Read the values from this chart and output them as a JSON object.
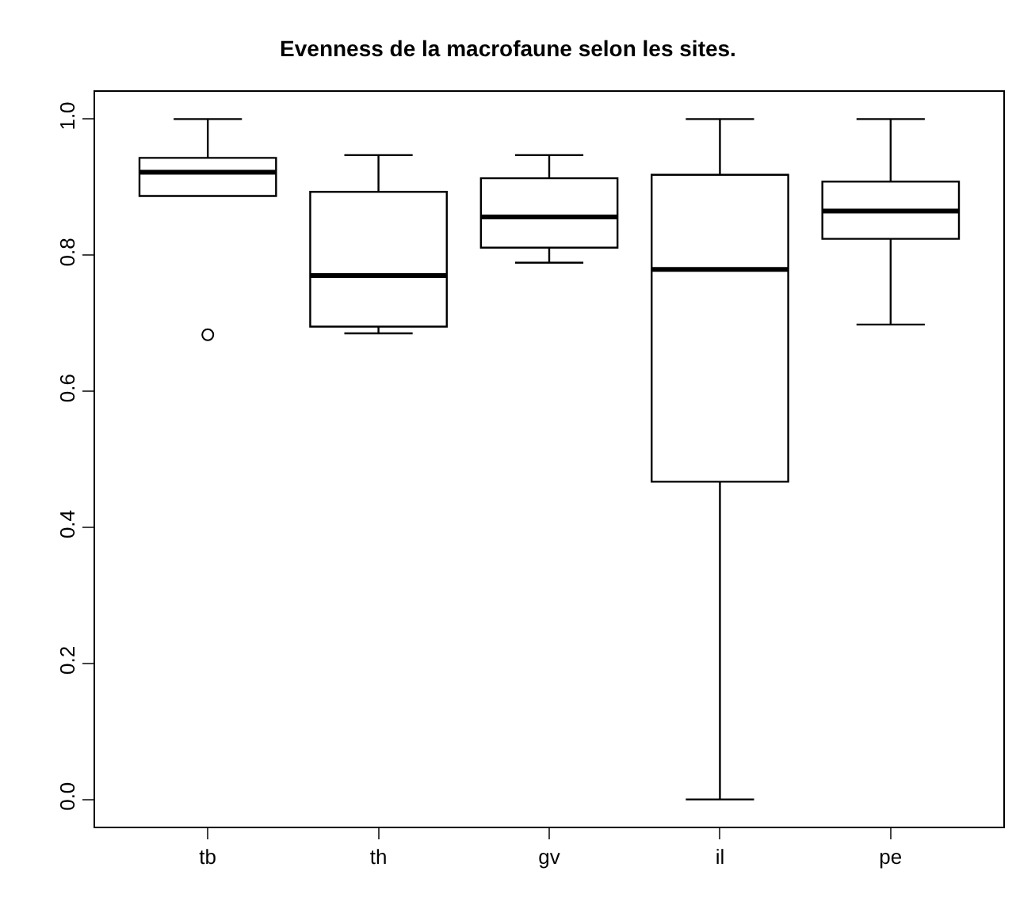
{
  "chart_data": {
    "type": "box",
    "title": "Evenness de la macrofaune selon les sites.",
    "categories": [
      "tb",
      "th",
      "gv",
      "il",
      "pe"
    ],
    "boxes": [
      {
        "low": 0.887,
        "q1": 0.887,
        "median": 0.922,
        "q3": 0.943,
        "high": 1.0,
        "outliers": [
          0.683
        ]
      },
      {
        "low": 0.685,
        "q1": 0.695,
        "median": 0.77,
        "q3": 0.893,
        "high": 0.947
      },
      {
        "low": 0.789,
        "q1": 0.811,
        "median": 0.856,
        "q3": 0.913,
        "high": 0.947
      },
      {
        "low": 0.0,
        "q1": 0.467,
        "median": 0.779,
        "q3": 0.918,
        "high": 1.0
      },
      {
        "low": 0.698,
        "q1": 0.824,
        "median": 0.865,
        "q3": 0.908,
        "high": 1.0
      }
    ],
    "ylim": [
      -0.04,
      1.04
    ],
    "yticks": [
      {
        "value": 0,
        "label": "0.0"
      },
      {
        "value": 0.2,
        "label": "0.2"
      },
      {
        "value": 0.4,
        "label": "0.4"
      },
      {
        "value": 0.6,
        "label": "0.6"
      },
      {
        "value": 0.8,
        "label": "0.8"
      },
      {
        "value": 1,
        "label": "1.0"
      }
    ]
  }
}
